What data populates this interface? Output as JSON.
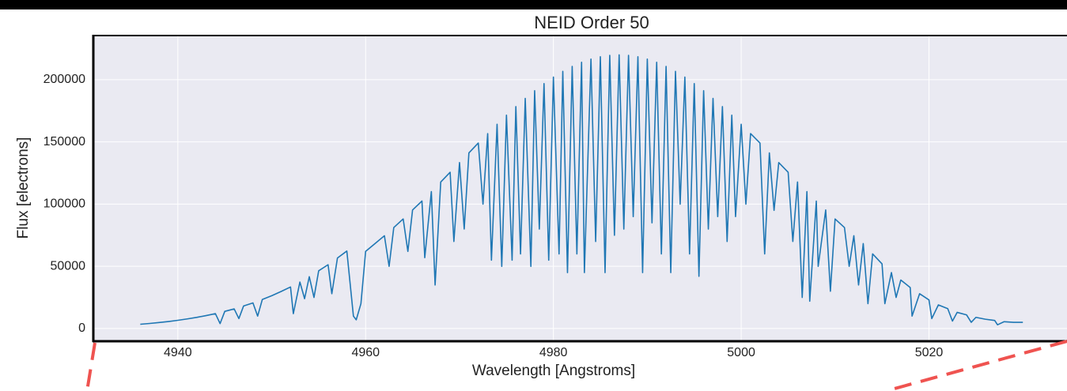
{
  "chart_data": {
    "type": "line",
    "title": "NEID Order 50",
    "x_label": "Wavelength [Angstroms]",
    "y_label": "Flux [electrons]",
    "x": [
      4936,
      4937,
      4938,
      4939,
      4940,
      4941,
      4942,
      4943,
      4944,
      4944.5,
      4945,
      4946,
      4946.5,
      4947,
      4948,
      4948.5,
      4949,
      4950,
      4951,
      4952,
      4952.3,
      4953,
      4953.5,
      4954,
      4954.5,
      4955,
      4956,
      4956.4,
      4957,
      4958,
      4958.7,
      4959,
      4959.5,
      4960,
      4961,
      4962,
      4962.5,
      4963,
      4964,
      4964.5,
      4965,
      4966,
      4966.3,
      4967,
      4967.4,
      4968,
      4969,
      4969.4,
      4970,
      4970.5,
      4971,
      4972,
      4972.5,
      4973,
      4973.4,
      4974,
      4974.5,
      4975,
      4975.6,
      4976,
      4976.5,
      4977,
      4977.6,
      4978,
      4978.5,
      4979,
      4979.5,
      4980,
      4980.6,
      4981,
      4981.5,
      4982,
      4982.5,
      4983,
      4983.3,
      4984,
      4984.5,
      4985,
      4985.5,
      4986,
      4986.5,
      4987,
      4987.5,
      4988,
      4988.5,
      4989,
      4989.5,
      4990,
      4990.5,
      4991,
      4991.5,
      4992,
      4992.5,
      4993,
      4993.5,
      4994,
      4994.5,
      4995,
      4995.5,
      4996,
      4996.5,
      4997,
      4997.5,
      4998,
      4998.5,
      4999,
      4999.4,
      5000,
      5000.5,
      5001,
      5002,
      5002.5,
      5003,
      5003.5,
      5004,
      5005,
      5005.5,
      5006,
      5006.5,
      5007,
      5007.3,
      5008,
      5008.2,
      5009,
      5009.5,
      5010,
      5011,
      5011.5,
      5012,
      5012.5,
      5013,
      5013.5,
      5014,
      5015,
      5015.3,
      5016,
      5016.5,
      5017,
      5018,
      5018.2,
      5019,
      5020,
      5020.3,
      5021,
      5022,
      5022.5,
      5023,
      5024,
      5024.5,
      5025,
      5026,
      5027,
      5027.3,
      5028,
      5029,
      5030
    ],
    "values": [
      3450,
      4090,
      4820,
      5660,
      6630,
      7730,
      8970,
      10400,
      12000,
      4000,
      13800,
      15800,
      8000,
      18100,
      20600,
      10000,
      23400,
      26400,
      29800,
      33400,
      12000,
      37400,
      24000,
      41700,
      25000,
      46400,
      51300,
      28000,
      56700,
      62300,
      10000,
      7000,
      20000,
      62000,
      68300,
      74600,
      50000,
      81200,
      88100,
      62000,
      95300,
      102500,
      57000,
      110100,
      35000,
      117800,
      125600,
      70000,
      133400,
      80000,
      141200,
      149100,
      100000,
      156700,
      55000,
      164200,
      50000,
      171500,
      55000,
      178400,
      60000,
      185000,
      50000,
      191200,
      80000,
      196900,
      55000,
      202100,
      60000,
      206700,
      45000,
      210700,
      60000,
      214000,
      45000,
      216600,
      70000,
      218500,
      45000,
      219600,
      75000,
      220000,
      80000,
      219600,
      90000,
      218500,
      45000,
      216600,
      85000,
      214000,
      60000,
      210700,
      45000,
      206700,
      100000,
      202100,
      60000,
      196900,
      42000,
      191200,
      80000,
      185000,
      90000,
      178400,
      70000,
      171500,
      90000,
      164200,
      100000,
      156700,
      149100,
      60000,
      141200,
      95000,
      133400,
      125600,
      70000,
      117800,
      25000,
      110100,
      22000,
      102500,
      50000,
      95300,
      30000,
      88100,
      81200,
      50000,
      74600,
      35000,
      68300,
      20000,
      60000,
      52000,
      20000,
      45000,
      25000,
      39000,
      33000,
      10000,
      28000,
      23000,
      8000,
      19000,
      16000,
      6000,
      13000,
      11000,
      5000,
      9000,
      7500,
      6500,
      3000,
      5500,
      5000,
      5000
    ],
    "color": "#1f77b4",
    "xlim": [
      4931,
      5034.7
    ],
    "ylim": [
      -10200,
      235500
    ],
    "xticks": [
      4940,
      4960,
      4980,
      5000,
      5020
    ],
    "yticks": [
      0,
      50000,
      100000,
      150000,
      200000
    ],
    "grid": true
  }
}
